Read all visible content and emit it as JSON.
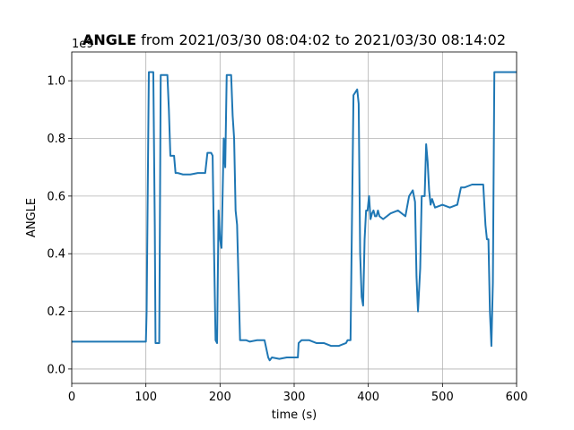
{
  "chart_data": {
    "type": "line",
    "title_bold": "ANGLE",
    "title_rest": " from 2021/03/30 08:04:02 to 2021/03/30 08:14:02",
    "xlabel": "time (s)",
    "ylabel": "ANGLE",
    "y_offset_label": "1e9",
    "xlim": [
      0,
      600
    ],
    "ylim": [
      -0.05,
      1.1
    ],
    "x_ticks": [
      0,
      100,
      200,
      300,
      400,
      500,
      600
    ],
    "x_tick_labels": [
      "0",
      "100",
      "200",
      "300",
      "400",
      "500",
      "600"
    ],
    "y_ticks": [
      0.0,
      0.2,
      0.4,
      0.6,
      0.8,
      1.0
    ],
    "y_tick_labels": [
      "0.0",
      "0.2",
      "0.4",
      "0.6",
      "0.8",
      "1.0"
    ],
    "grid": true,
    "color": "#1f77b4",
    "series": [
      {
        "x": [
          0,
          100,
          101,
          104,
          110,
          112,
          113,
          118,
          120,
          122,
          129,
          131,
          133,
          136,
          138,
          140,
          143,
          150,
          160,
          170,
          180,
          183,
          188,
          190,
          192,
          194,
          196,
          198,
          200,
          202,
          205,
          207,
          209,
          211,
          213,
          215,
          217,
          219,
          221,
          223,
          225,
          227,
          229,
          231,
          233,
          235,
          240,
          250,
          260,
          265,
          267,
          270,
          280,
          290,
          300,
          305,
          306,
          310,
          320,
          330,
          340,
          350,
          360,
          370,
          372,
          376,
          380,
          385,
          387,
          389,
          391,
          393,
          395,
          397,
          399,
          401,
          403,
          405,
          407,
          409,
          411,
          413,
          415,
          420,
          430,
          440,
          450,
          455,
          460,
          463,
          465,
          467,
          470,
          472,
          474,
          476,
          478,
          480,
          482,
          484,
          486,
          490,
          500,
          510,
          520,
          525,
          530,
          540,
          550,
          555,
          558,
          560,
          562,
          564,
          566,
          568,
          570,
          580,
          590,
          600
        ],
        "values": [
          0.095,
          0.095,
          0.2,
          1.03,
          1.03,
          0.5,
          0.09,
          0.09,
          1.02,
          1.02,
          1.02,
          0.9,
          0.74,
          0.74,
          0.74,
          0.68,
          0.68,
          0.675,
          0.675,
          0.68,
          0.68,
          0.75,
          0.75,
          0.74,
          0.4,
          0.1,
          0.09,
          0.55,
          0.45,
          0.42,
          0.8,
          0.7,
          1.02,
          1.02,
          1.02,
          1.02,
          0.88,
          0.8,
          0.55,
          0.5,
          0.3,
          0.1,
          0.1,
          0.1,
          0.1,
          0.1,
          0.095,
          0.1,
          0.1,
          0.04,
          0.03,
          0.04,
          0.035,
          0.04,
          0.04,
          0.04,
          0.09,
          0.1,
          0.1,
          0.09,
          0.09,
          0.08,
          0.08,
          0.09,
          0.1,
          0.1,
          0.95,
          0.97,
          0.92,
          0.4,
          0.25,
          0.22,
          0.45,
          0.55,
          0.55,
          0.6,
          0.52,
          0.54,
          0.55,
          0.53,
          0.53,
          0.55,
          0.53,
          0.52,
          0.54,
          0.55,
          0.53,
          0.6,
          0.62,
          0.58,
          0.32,
          0.2,
          0.35,
          0.6,
          0.6,
          0.6,
          0.78,
          0.72,
          0.62,
          0.57,
          0.59,
          0.56,
          0.57,
          0.56,
          0.57,
          0.63,
          0.63,
          0.64,
          0.64,
          0.64,
          0.5,
          0.45,
          0.45,
          0.2,
          0.08,
          0.3,
          1.03,
          1.03,
          1.03,
          1.03
        ]
      }
    ]
  }
}
